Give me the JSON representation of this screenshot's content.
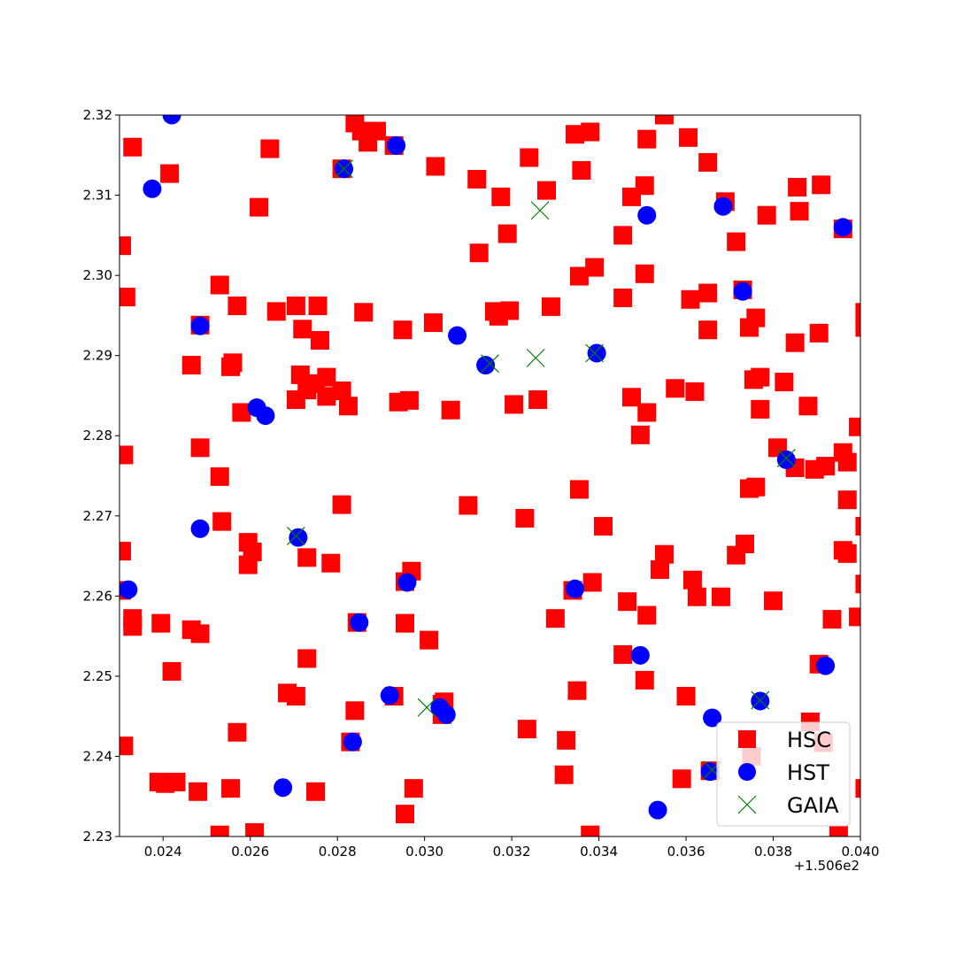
{
  "chart_data": {
    "type": "scatter",
    "title": "",
    "xlabel": "",
    "ylabel": "",
    "x_offset_label": "+1.506e2",
    "xlim": [
      150.623,
      150.64
    ],
    "ylim": [
      2.23,
      2.32
    ],
    "grid": false,
    "legend_position": "lower-right",
    "x_tick_labels": [
      "0.024",
      "0.026",
      "0.028",
      "0.030",
      "0.032",
      "0.034",
      "0.036",
      "0.038",
      "0.040"
    ],
    "x_tick_values": [
      150.624,
      150.626,
      150.628,
      150.63,
      150.632,
      150.634,
      150.636,
      150.638,
      150.64
    ],
    "y_tick_labels": [
      "2.23",
      "2.24",
      "2.25",
      "2.26",
      "2.27",
      "2.28",
      "2.29",
      "2.30",
      "2.31",
      "2.32"
    ],
    "y_tick_values": [
      2.23,
      2.24,
      2.25,
      2.26,
      2.27,
      2.28,
      2.29,
      2.3,
      2.31,
      2.32
    ],
    "series": [
      {
        "name": "HSC",
        "marker": "square",
        "color": "#ff0000",
        "points": [
          [
            150.6233,
            2.316
          ],
          [
            150.62415,
            2.3127
          ],
          [
            150.62315,
            2.2973
          ],
          [
            150.6231,
            2.2776
          ],
          [
            150.62305,
            2.2656
          ],
          [
            150.62305,
            2.2607
          ],
          [
            150.6233,
            2.2572
          ],
          [
            150.6233,
            2.2562
          ],
          [
            150.62395,
            2.2566
          ],
          [
            150.6242,
            2.2506
          ],
          [
            150.6231,
            2.2413
          ],
          [
            150.6239,
            2.2368
          ],
          [
            150.62405,
            2.2366
          ],
          [
            150.6243,
            2.2368
          ],
          [
            150.6248,
            2.2356
          ],
          [
            150.6253,
            2.2302
          ],
          [
            150.62555,
            2.236
          ],
          [
            150.6261,
            2.2305
          ],
          [
            150.6257,
            2.243
          ],
          [
            150.62465,
            2.2558
          ],
          [
            150.62485,
            2.2553
          ],
          [
            150.62535,
            2.2693
          ],
          [
            150.6253,
            2.2749
          ],
          [
            150.62485,
            2.2785
          ],
          [
            150.6258,
            2.2829
          ],
          [
            150.62555,
            2.2886
          ],
          [
            150.6256,
            2.2891
          ],
          [
            150.62465,
            2.2888
          ],
          [
            150.62485,
            2.2938
          ],
          [
            150.6253,
            2.2988
          ],
          [
            150.6257,
            2.2962
          ],
          [
            150.6262,
            2.3085
          ],
          [
            150.62645,
            2.3158
          ],
          [
            150.6266,
            2.2955
          ],
          [
            150.62705,
            2.2962
          ],
          [
            150.6272,
            2.2933
          ],
          [
            150.62755,
            2.2962
          ],
          [
            150.6276,
            2.2919
          ],
          [
            150.62715,
            2.2876
          ],
          [
            150.62705,
            2.2845
          ],
          [
            150.6273,
            2.2857
          ],
          [
            150.6275,
            2.2865
          ],
          [
            150.62775,
            2.2873
          ],
          [
            150.62775,
            2.2849
          ],
          [
            150.6281,
            2.2856
          ],
          [
            150.62825,
            2.2837
          ],
          [
            150.6286,
            2.2954
          ],
          [
            150.6281,
            2.2714
          ],
          [
            150.62595,
            2.2667
          ],
          [
            150.62605,
            2.2655
          ],
          [
            150.62595,
            2.2639
          ],
          [
            150.6273,
            2.2648
          ],
          [
            150.62785,
            2.2641
          ],
          [
            150.62685,
            2.2479
          ],
          [
            150.62705,
            2.2475
          ],
          [
            150.6273,
            2.2522
          ],
          [
            150.6275,
            2.2356
          ],
          [
            150.6284,
            2.2457
          ],
          [
            150.6283,
            2.2418
          ],
          [
            150.62845,
            2.2567
          ],
          [
            150.6293,
            2.2475
          ],
          [
            150.62955,
            2.2566
          ],
          [
            150.62955,
            2.2618
          ],
          [
            150.6297,
            2.2631
          ],
          [
            150.6301,
            2.2545
          ],
          [
            150.6304,
            2.2465
          ],
          [
            150.6304,
            2.2452
          ],
          [
            150.62975,
            2.236
          ],
          [
            150.62955,
            2.2328
          ],
          [
            150.6294,
            2.2842
          ],
          [
            150.62965,
            2.2844
          ],
          [
            150.6306,
            2.2832
          ],
          [
            150.6295,
            2.2932
          ],
          [
            150.6302,
            2.2941
          ],
          [
            150.6316,
            2.2955
          ],
          [
            150.6317,
            2.2949
          ],
          [
            150.63195,
            2.2956
          ],
          [
            150.6329,
            2.2961
          ],
          [
            150.63205,
            2.2839
          ],
          [
            150.6326,
            2.2845
          ],
          [
            150.631,
            2.2713
          ],
          [
            150.6323,
            2.2697
          ],
          [
            150.63125,
            2.3028
          ],
          [
            150.6319,
            2.3052
          ],
          [
            150.63175,
            2.3098
          ],
          [
            150.6312,
            2.312
          ],
          [
            150.63025,
            2.3136
          ],
          [
            150.6324,
            2.3147
          ],
          [
            150.6328,
            2.3106
          ],
          [
            150.63345,
            2.3176
          ],
          [
            150.6336,
            2.3131
          ],
          [
            150.63355,
            2.2999
          ],
          [
            150.6338,
            2.3179
          ],
          [
            150.6339,
            2.301
          ],
          [
            150.63455,
            2.2972
          ],
          [
            150.63455,
            2.305
          ],
          [
            150.63475,
            2.3098
          ],
          [
            150.63505,
            2.3112
          ],
          [
            150.63505,
            2.3002
          ],
          [
            150.6351,
            2.317
          ],
          [
            150.63475,
            2.2848
          ],
          [
            150.6351,
            2.2829
          ],
          [
            150.63495,
            2.2801
          ],
          [
            150.63355,
            2.2733
          ],
          [
            150.6341,
            2.2687
          ],
          [
            150.6334,
            2.2607
          ],
          [
            150.63385,
            2.2617
          ],
          [
            150.633,
            2.2572
          ],
          [
            150.63465,
            2.2593
          ],
          [
            150.6351,
            2.2576
          ],
          [
            150.63455,
            2.2527
          ],
          [
            150.63505,
            2.2495
          ],
          [
            150.6335,
            2.2482
          ],
          [
            150.63235,
            2.2434
          ],
          [
            150.63325,
            2.242
          ],
          [
            150.6332,
            2.2377
          ],
          [
            150.6338,
            2.2302
          ],
          [
            150.6355,
            2.32
          ],
          [
            150.63605,
            2.3172
          ],
          [
            150.6365,
            2.3141
          ],
          [
            150.6361,
            2.297
          ],
          [
            150.6365,
            2.2978
          ],
          [
            150.6365,
            2.2932
          ],
          [
            150.63575,
            2.2859
          ],
          [
            150.6362,
            2.2855
          ],
          [
            150.6355,
            2.2652
          ],
          [
            150.6354,
            2.2633
          ],
          [
            150.63615,
            2.262
          ],
          [
            150.63625,
            2.2599
          ],
          [
            150.6368,
            2.2599
          ],
          [
            150.6359,
            2.2372
          ],
          [
            150.636,
            2.2475
          ],
          [
            150.63655,
            2.2382
          ],
          [
            150.6369,
            2.3092
          ],
          [
            150.63715,
            2.3042
          ],
          [
            150.6373,
            2.2982
          ],
          [
            150.63745,
            2.2935
          ],
          [
            150.6376,
            2.2947
          ],
          [
            150.63755,
            2.287
          ],
          [
            150.6377,
            2.2873
          ],
          [
            150.6377,
            2.2833
          ],
          [
            150.63745,
            2.2734
          ],
          [
            150.6376,
            2.2736
          ],
          [
            150.63715,
            2.2651
          ],
          [
            150.63735,
            2.2665
          ],
          [
            150.638,
            2.2594
          ],
          [
            150.63785,
            2.3075
          ],
          [
            150.63855,
            2.311
          ],
          [
            150.6386,
            2.308
          ],
          [
            150.63825,
            2.2867
          ],
          [
            150.6385,
            2.2916
          ],
          [
            150.6388,
            2.2837
          ],
          [
            150.6381,
            2.2785
          ],
          [
            150.6385,
            2.276
          ],
          [
            150.63895,
            2.2758
          ],
          [
            150.6392,
            2.2762
          ],
          [
            150.63905,
            2.2928
          ],
          [
            150.6391,
            2.3113
          ],
          [
            150.6396,
            2.3058
          ],
          [
            150.6401,
            2.2954
          ],
          [
            150.6401,
            2.2935
          ],
          [
            150.63995,
            2.2811
          ],
          [
            150.6396,
            2.2779
          ],
          [
            150.6397,
            2.2767
          ],
          [
            150.6397,
            2.272
          ],
          [
            150.6401,
            2.2687
          ],
          [
            150.6396,
            2.2657
          ],
          [
            150.6397,
            2.2653
          ],
          [
            150.6401,
            2.2615
          ],
          [
            150.63935,
            2.2571
          ],
          [
            150.63995,
            2.2574
          ],
          [
            150.63905,
            2.2515
          ],
          [
            150.63885,
            2.2443
          ],
          [
            150.63915,
            2.2417
          ],
          [
            150.6395,
            2.2302
          ],
          [
            150.6401,
            2.236
          ],
          [
            150.62305,
            2.3037
          ],
          [
            150.6284,
            2.319
          ],
          [
            150.62855,
            2.318
          ],
          [
            150.6287,
            2.3166
          ],
          [
            150.6289,
            2.318
          ],
          [
            150.6281,
            2.3133
          ],
          [
            150.6293,
            2.3162
          ],
          [
            150.63045,
            2.2468
          ],
          [
            150.6375,
            2.24
          ]
        ]
      },
      {
        "name": "HST",
        "marker": "circle",
        "color": "#0000ff",
        "points": [
          [
            150.6242,
            2.32
          ],
          [
            150.62375,
            2.3108
          ],
          [
            150.62485,
            2.2937
          ],
          [
            150.62615,
            2.2835
          ],
          [
            150.62635,
            2.2825
          ],
          [
            150.62485,
            2.2684
          ],
          [
            150.6232,
            2.2608
          ],
          [
            150.6271,
            2.2673
          ],
          [
            150.62675,
            2.2361
          ],
          [
            150.62815,
            2.3133
          ],
          [
            150.62935,
            2.3162
          ],
          [
            150.63075,
            2.2925
          ],
          [
            150.6314,
            2.2888
          ],
          [
            150.63395,
            2.2903
          ],
          [
            150.6351,
            2.3075
          ],
          [
            150.63685,
            2.3086
          ],
          [
            150.6373,
            2.298
          ],
          [
            150.6383,
            2.277
          ],
          [
            150.63345,
            2.2609
          ],
          [
            150.6296,
            2.2617
          ],
          [
            150.6285,
            2.2567
          ],
          [
            150.63495,
            2.2526
          ],
          [
            150.6392,
            2.2513
          ],
          [
            150.63655,
            2.2381
          ],
          [
            150.6366,
            2.2448
          ],
          [
            150.6377,
            2.2469
          ],
          [
            150.63535,
            2.2333
          ],
          [
            150.6292,
            2.2476
          ],
          [
            150.63035,
            2.2461
          ],
          [
            150.6305,
            2.2452
          ],
          [
            150.62835,
            2.2418
          ],
          [
            150.6396,
            2.306
          ]
        ]
      },
      {
        "name": "GAIA",
        "marker": "x",
        "color": "#008000",
        "points": [
          [
            150.62815,
            2.3133
          ],
          [
            150.63265,
            2.3081
          ],
          [
            150.63255,
            2.2897
          ],
          [
            150.6315,
            2.289
          ],
          [
            150.6339,
            2.2903
          ],
          [
            150.6383,
            2.2772
          ],
          [
            150.62705,
            2.2675
          ],
          [
            150.63005,
            2.2461
          ],
          [
            150.6377,
            2.247
          ],
          [
            150.6366,
            2.2383
          ]
        ]
      }
    ],
    "legend": [
      "HSC",
      "HST",
      "GAIA"
    ]
  }
}
